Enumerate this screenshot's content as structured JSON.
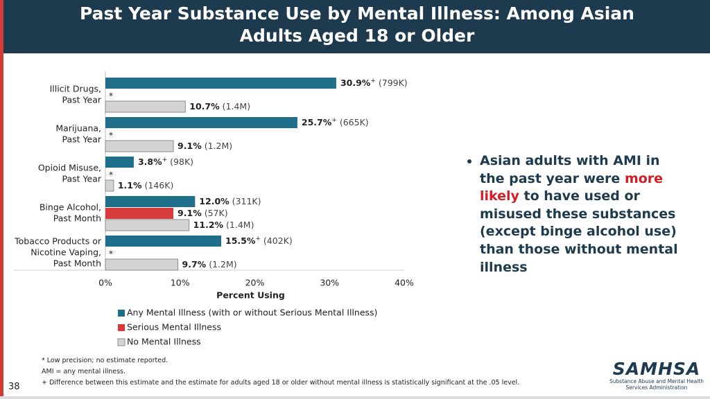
{
  "header": {
    "title": "Past Year Substance Use by Mental Illness: Among Asian Adults Aged 18 or Older"
  },
  "chart_data": {
    "type": "hbar",
    "categories": [
      [
        "Illicit Drugs,",
        "Past Year"
      ],
      [
        "Marijuana,",
        "Past Year"
      ],
      [
        "Opioid Misuse,",
        "Past Year"
      ],
      [
        "Binge Alcohol,",
        "Past Month"
      ],
      [
        "Tobacco Products or",
        "Nicotine Vaping,",
        "Past Month"
      ]
    ],
    "series": [
      {
        "name": "Any Mental Illness (with or without Serious Mental Illness)",
        "color": "#1f6f8b",
        "values": [
          30.9,
          25.7,
          3.8,
          12.0,
          15.5
        ],
        "value_labels": [
          "30.9%",
          "25.7%",
          "3.8%",
          "12.0%",
          "15.5%"
        ],
        "flags": [
          "+",
          "+",
          "+",
          null,
          "+"
        ],
        "counts": [
          "(799K)",
          "(665K)",
          "(98K)",
          "(311K)",
          "(402K)"
        ]
      },
      {
        "name": "Serious Mental Illness",
        "color": "#d63a3c",
        "values": [
          null,
          null,
          null,
          9.1,
          null
        ],
        "value_labels": [
          "*",
          "*",
          "*",
          "9.1%",
          "*"
        ],
        "flags": [
          null,
          null,
          null,
          null,
          null
        ],
        "counts": [
          null,
          null,
          null,
          "(57K)",
          null
        ]
      },
      {
        "name": "No Mental Illness",
        "color": "#d4d4d4",
        "values": [
          10.7,
          9.1,
          1.1,
          11.2,
          9.7
        ],
        "value_labels": [
          "10.7%",
          "9.1%",
          "1.1%",
          "11.2%",
          "9.7%"
        ],
        "flags": [
          null,
          null,
          null,
          null,
          null
        ],
        "counts": [
          "(1.4M)",
          "(1.2M)",
          "(146K)",
          "(1.4M)",
          "(1.2M)"
        ]
      }
    ],
    "xlim": [
      0,
      40
    ],
    "xticks": [
      {
        "value": 0,
        "label": "0%"
      },
      {
        "value": 10,
        "label": "10%"
      },
      {
        "value": 20,
        "label": "20%"
      },
      {
        "value": 30,
        "label": "30%"
      },
      {
        "value": 40,
        "label": "40%"
      }
    ],
    "x_label": "Percent Using"
  },
  "bullet": [
    "Asian adults with AMI in the past year were ",
    "more likely",
    " to have used or misused these substances (except binge alcohol use) than those without mental illness"
  ],
  "footnotes": [
    "* Low precision; no estimate reported.",
    "AMI = any mental illness.",
    "+ Difference between this estimate and the estimate for adults aged 18 or older without mental illness is statistically significant at the .05 level."
  ],
  "page_number": "38",
  "logo": {
    "name": "SAMHSA",
    "line1": "Substance Abuse and Mental Health",
    "line2": "Services Administration"
  }
}
